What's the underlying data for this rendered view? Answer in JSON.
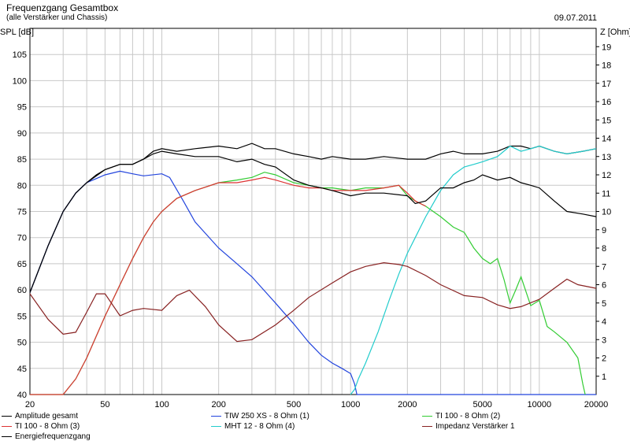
{
  "chart_data": {
    "type": "line",
    "title": "Frequenzgang Gesamtbox",
    "subtitle": "(alle Verstärker und Chassis)",
    "date": "09.07.2011",
    "ylabel": "SPL [dB]",
    "y2label": "Z [Ohm]",
    "xscale": "log",
    "xlim": [
      20,
      20000
    ],
    "ylim": [
      40,
      110
    ],
    "y2lim": [
      0,
      20
    ],
    "grid": true,
    "xticks": [
      20,
      50,
      100,
      200,
      500,
      1000,
      2000,
      5000,
      10000,
      20000
    ],
    "xtick_labels": [
      "20",
      "50",
      "100",
      "200",
      "500",
      "1000",
      "2000",
      "5000",
      "10000",
      "20000"
    ],
    "yticks": [
      40,
      45,
      50,
      55,
      60,
      65,
      70,
      75,
      80,
      85,
      90,
      95,
      100,
      105
    ],
    "ytick_labels": [
      "40",
      "45",
      "50",
      "55",
      "60",
      "65",
      "70",
      "75",
      "80",
      "85",
      "90",
      "95",
      "100",
      "105"
    ],
    "y2ticks": [
      1,
      2,
      3,
      4,
      5,
      6,
      7,
      8,
      9,
      10,
      11,
      12,
      13,
      14,
      15,
      16,
      17,
      18,
      19
    ],
    "y2tick_labels": [
      "1",
      "2",
      "3",
      "4",
      "5",
      "6",
      "7",
      "8",
      "9",
      "10",
      "11",
      "12",
      "13",
      "14",
      "15",
      "16",
      "17",
      "18",
      "19"
    ],
    "series": [
      {
        "name": "Amplitude gesamt",
        "color": "#000000",
        "axis": "left",
        "x": [
          20,
          25,
          30,
          35,
          40,
          45,
          50,
          60,
          70,
          80,
          90,
          100,
          120,
          150,
          200,
          250,
          300,
          350,
          400,
          500,
          600,
          700,
          800,
          1000,
          1200,
          1500,
          2000,
          2500,
          3000,
          3500,
          4000,
          5000,
          6000,
          7000,
          8000,
          9000,
          10000,
          12000,
          14000,
          17000,
          20000
        ],
        "y": [
          59.5,
          68.5,
          75,
          78.5,
          80.5,
          82,
          83,
          84,
          84,
          85,
          86.5,
          87,
          86.5,
          87,
          87.5,
          87,
          88,
          87,
          87,
          86,
          85.5,
          85,
          85.5,
          85,
          85,
          85.5,
          85,
          85,
          86,
          86.5,
          86,
          86,
          86.5,
          87.5,
          87.5,
          87,
          87.5,
          86.5,
          86,
          86.5,
          87
        ]
      },
      {
        "name": "TIW 250 XS - 8 Ohm (1)",
        "color": "#2244dd",
        "axis": "left",
        "x": [
          20,
          25,
          30,
          35,
          40,
          50,
          60,
          70,
          80,
          100,
          110,
          130,
          150,
          200,
          250,
          300,
          400,
          500,
          600,
          700,
          800,
          900,
          1000,
          1050,
          1080,
          1100,
          2000,
          20000
        ],
        "y": [
          59.5,
          68.5,
          75,
          78.5,
          80.5,
          82,
          82.7,
          82.2,
          81.8,
          82.2,
          81.5,
          77,
          73,
          68,
          65,
          62.5,
          57.5,
          53.5,
          50,
          47.5,
          46,
          45,
          44,
          42,
          40,
          40,
          40,
          40
        ]
      },
      {
        "name": "TI 100 - 8 Ohm (2)",
        "color": "#33cc33",
        "axis": "left",
        "x": [
          20,
          30,
          35,
          40,
          50,
          60,
          70,
          80,
          90,
          100,
          120,
          150,
          200,
          250,
          300,
          350,
          400,
          500,
          600,
          700,
          800,
          1000,
          1200,
          1500,
          1800,
          2000,
          2200,
          2500,
          3000,
          3500,
          4000,
          4500,
          5000,
          5500,
          6000,
          6500,
          7000,
          7500,
          8000,
          9000,
          10000,
          11000,
          12000,
          14000,
          16000,
          17000,
          17500
        ],
        "y": [
          40,
          40,
          43,
          47,
          55,
          61,
          66,
          70,
          73,
          75,
          77.5,
          79,
          80.5,
          81,
          81.5,
          82.5,
          82,
          80.5,
          80,
          79.5,
          79.5,
          79,
          79.5,
          79.5,
          80,
          78,
          77,
          76,
          74,
          72,
          71,
          68,
          66,
          65,
          66,
          62,
          57.5,
          60,
          62.5,
          57,
          58,
          53,
          52,
          50,
          47,
          42,
          40
        ]
      },
      {
        "name": "TI 100 - 8 Ohm (3)",
        "color": "#dd3333",
        "axis": "left",
        "x": [
          20,
          30,
          35,
          40,
          50,
          60,
          70,
          80,
          90,
          100,
          120,
          150,
          200,
          250,
          300,
          350,
          400,
          500,
          600,
          700,
          800,
          1000,
          1200,
          1500,
          1800,
          2000,
          2200,
          2500
        ],
        "y": [
          40,
          40,
          43,
          47,
          55,
          61,
          66,
          70,
          73,
          75,
          77.5,
          79,
          80.5,
          80.5,
          81,
          81.5,
          81,
          80,
          79.5,
          79.5,
          79,
          79,
          79,
          79.5,
          80,
          78.5,
          77,
          76
        ]
      },
      {
        "name": "MHT 12 - 8 Ohm (4)",
        "color": "#22cccc",
        "axis": "left",
        "x": [
          1000,
          1050,
          1100,
          1200,
          1400,
          1600,
          1800,
          2000,
          2200,
          2500,
          3000,
          3500,
          4000,
          4500,
          5000,
          6000,
          7000,
          8000,
          9000,
          10000,
          12000,
          14000,
          17000,
          20000
        ],
        "y": [
          40,
          41,
          43,
          46,
          52,
          58,
          63,
          67,
          70,
          74,
          79,
          82,
          83.5,
          84,
          84.5,
          85.5,
          87.5,
          86.5,
          87,
          87.5,
          86.5,
          86,
          86.5,
          87
        ]
      },
      {
        "name": "Impedanz Verstärker 1",
        "color": "#882222",
        "axis": "right",
        "x": [
          20,
          25,
          30,
          35,
          40,
          45,
          50,
          60,
          70,
          80,
          100,
          120,
          140,
          170,
          200,
          250,
          300,
          400,
          500,
          600,
          800,
          1000,
          1200,
          1500,
          1800,
          2000,
          2500,
          3000,
          4000,
          5000,
          6000,
          7000,
          8000,
          10000,
          12000,
          14000,
          16000,
          20000
        ],
        "y": [
          5.5,
          4.1,
          3.3,
          3.4,
          4.5,
          5.5,
          5.5,
          4.3,
          4.6,
          4.7,
          4.6,
          5.4,
          5.7,
          4.8,
          3.8,
          2.9,
          3.0,
          3.8,
          4.6,
          5.3,
          6.1,
          6.7,
          7.0,
          7.2,
          7.1,
          7.0,
          6.5,
          6.0,
          5.4,
          5.3,
          4.9,
          4.7,
          4.8,
          5.2,
          5.8,
          6.3,
          6.0,
          5.8
        ]
      },
      {
        "name": "Energiefrequenzgang",
        "color": "#000000",
        "axis": "left",
        "x": [
          20,
          25,
          30,
          35,
          40,
          50,
          60,
          70,
          80,
          90,
          100,
          120,
          150,
          200,
          250,
          300,
          350,
          400,
          500,
          600,
          700,
          800,
          1000,
          1200,
          1500,
          2000,
          2200,
          2500,
          3000,
          3500,
          4000,
          4500,
          5000,
          6000,
          7000,
          8000,
          9000,
          10000,
          12000,
          14000,
          17000,
          20000
        ],
        "y": [
          59.5,
          68.5,
          75,
          78.5,
          80.5,
          83,
          84,
          84,
          85,
          86,
          86.5,
          86,
          85.5,
          85.5,
          84.5,
          85,
          84,
          83.5,
          81,
          80,
          79.5,
          79,
          78,
          78.5,
          78.5,
          78,
          76.5,
          77,
          79.5,
          79.5,
          80.5,
          81,
          82,
          81,
          81.5,
          80.5,
          80,
          79.5,
          77,
          75,
          74.5,
          74
        ]
      }
    ]
  }
}
